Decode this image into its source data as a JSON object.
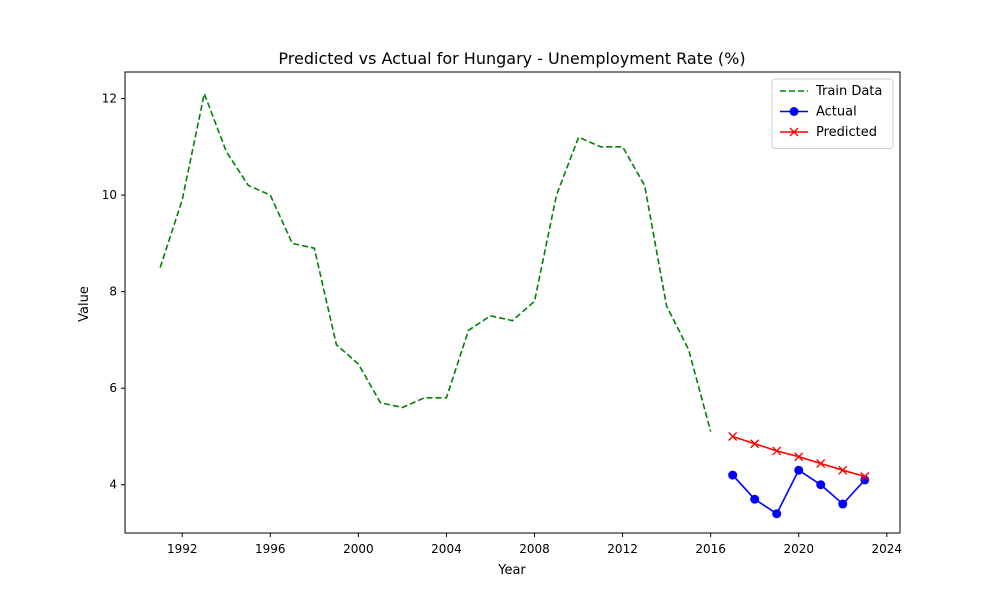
{
  "chart_data": {
    "type": "line",
    "title": "Predicted vs Actual for Hungary - Unemployment Rate (%)",
    "xlabel": "Year",
    "ylabel": "Value",
    "xlim": [
      1989.4,
      2024.6
    ],
    "ylim": [
      3.0,
      12.55
    ],
    "x_ticks": [
      1992,
      1996,
      2000,
      2004,
      2008,
      2012,
      2016,
      2020,
      2024
    ],
    "y_ticks": [
      4,
      6,
      8,
      10,
      12
    ],
    "grid": false,
    "legend_position": "upper right",
    "series": [
      {
        "name": "Train Data",
        "style": "dashed",
        "marker": "none",
        "color": "#008000",
        "x": [
          1991,
          1992,
          1993,
          1994,
          1995,
          1996,
          1997,
          1998,
          1999,
          2000,
          2001,
          2002,
          2003,
          2004,
          2005,
          2006,
          2007,
          2008,
          2009,
          2010,
          2011,
          2012,
          2013,
          2014,
          2015,
          2016
        ],
        "y": [
          8.5,
          9.9,
          12.1,
          10.9,
          10.2,
          10.0,
          9.0,
          8.9,
          6.9,
          6.5,
          5.7,
          5.6,
          5.8,
          5.8,
          7.2,
          7.5,
          7.4,
          7.8,
          10.0,
          11.2,
          11.0,
          11.0,
          10.2,
          7.7,
          6.8,
          5.1
        ]
      },
      {
        "name": "Actual",
        "style": "solid",
        "marker": "circle",
        "color": "#0000ff",
        "x": [
          2017,
          2018,
          2019,
          2020,
          2021,
          2022,
          2023
        ],
        "y": [
          4.2,
          3.7,
          3.4,
          4.3,
          4.0,
          3.6,
          4.1
        ]
      },
      {
        "name": "Predicted",
        "style": "solid",
        "marker": "x",
        "color": "#ff0000",
        "x": [
          2017,
          2018,
          2019,
          2020,
          2021,
          2022,
          2023
        ],
        "y": [
          5.0,
          4.85,
          4.7,
          4.58,
          4.44,
          4.3,
          4.17
        ]
      }
    ]
  }
}
